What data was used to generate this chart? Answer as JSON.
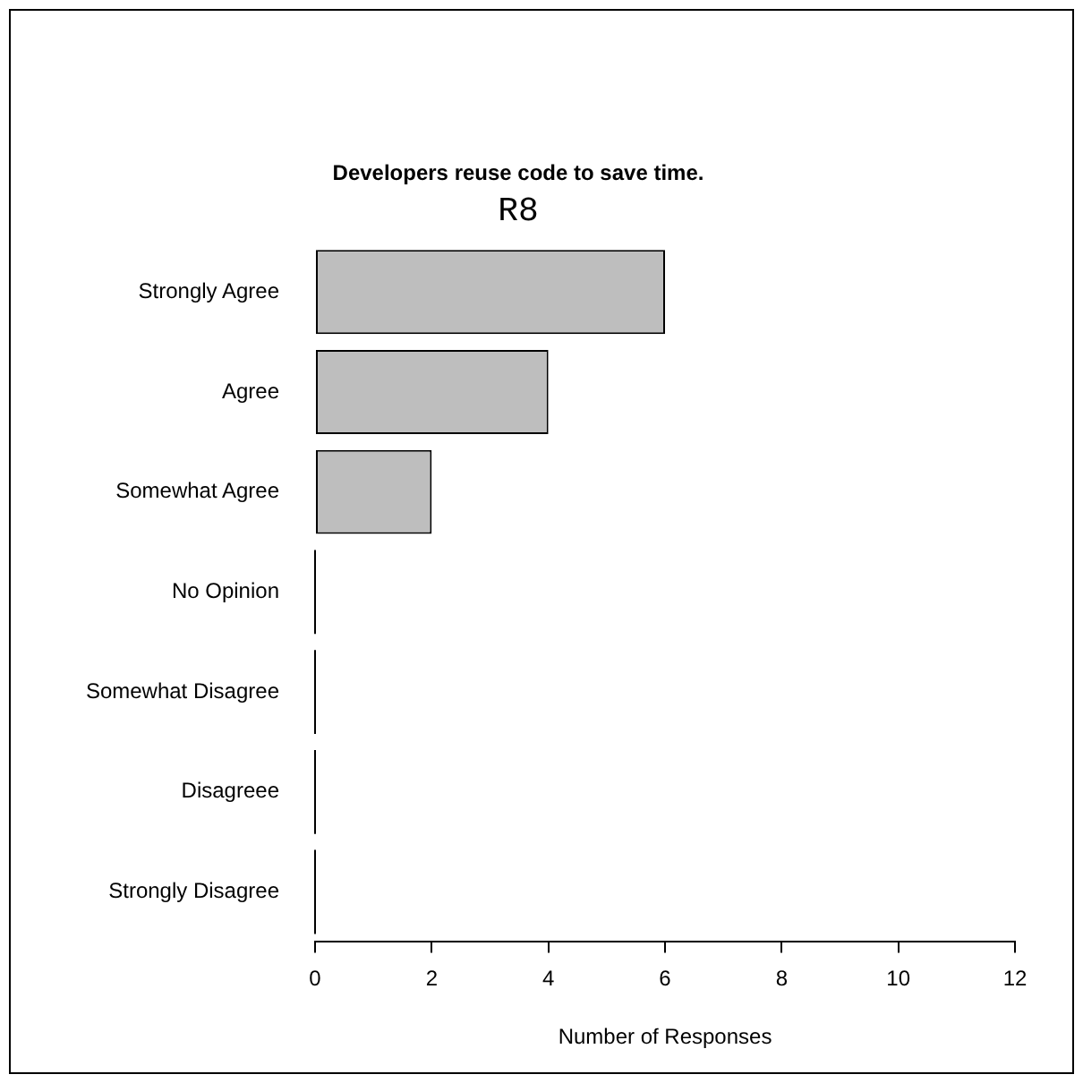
{
  "chart_data": {
    "type": "bar",
    "orientation": "horizontal",
    "title": "Developers reuse code to save time.",
    "subtitle": "R8",
    "xlabel": "Number of Responses",
    "categories": [
      "Strongly Agree",
      "Agree",
      "Somewhat Agree",
      "No Opinion",
      "Somewhat Disagree",
      "Disagreee",
      "Strongly Disagree"
    ],
    "values": [
      6,
      4,
      2,
      0,
      0,
      0,
      0
    ],
    "color": "#bebebe",
    "xlim": [
      0,
      12
    ],
    "xticks": [
      0,
      2,
      4,
      6,
      8,
      10,
      12
    ],
    "grid": false,
    "legend": false
  }
}
